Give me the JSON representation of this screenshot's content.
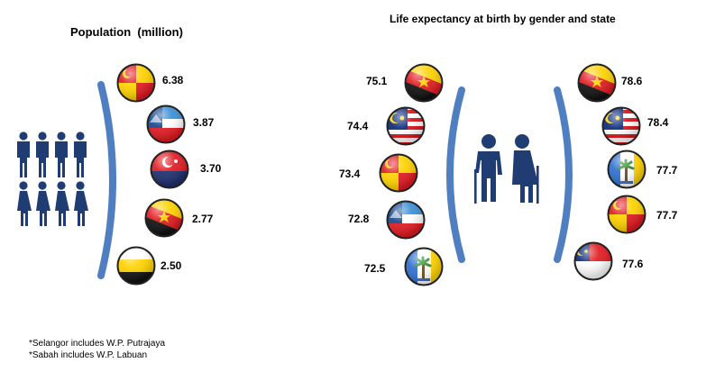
{
  "population": {
    "title": "Population  (million)",
    "items": [
      {
        "flag": "selangor-flag",
        "value": "6.38"
      },
      {
        "flag": "sabah-flag",
        "value": "3.87"
      },
      {
        "flag": "johor-flag",
        "value": "3.70"
      },
      {
        "flag": "sarawak-flag",
        "value": "2.77"
      },
      {
        "flag": "perak-flag",
        "value": "2.50"
      }
    ]
  },
  "life_expectancy": {
    "title": "Life expectancy at birth by gender and state",
    "male": [
      {
        "flag": "sarawak-flag",
        "value": "75.1"
      },
      {
        "flag": "malaysia-flag",
        "value": "74.4"
      },
      {
        "flag": "selangor-flag",
        "value": "73.4"
      },
      {
        "flag": "sabah-flag",
        "value": "72.8"
      },
      {
        "flag": "penang-flag",
        "value": "72.5"
      }
    ],
    "female": [
      {
        "flag": "sarawak-flag",
        "value": "78.6"
      },
      {
        "flag": "malaysia-flag",
        "value": "78.4"
      },
      {
        "flag": "penang-flag",
        "value": "77.7"
      },
      {
        "flag": "selangor-flag",
        "value": "77.7"
      },
      {
        "flag": "melaka-flag",
        "value": "77.6"
      }
    ]
  },
  "notes": [
    "*Selangor includes W.P. Putrajaya",
    "*Sabah includes W.P. Labuan"
  ],
  "colors": {
    "bracket": "#4f7fc1",
    "figure": "#1f3d73"
  }
}
